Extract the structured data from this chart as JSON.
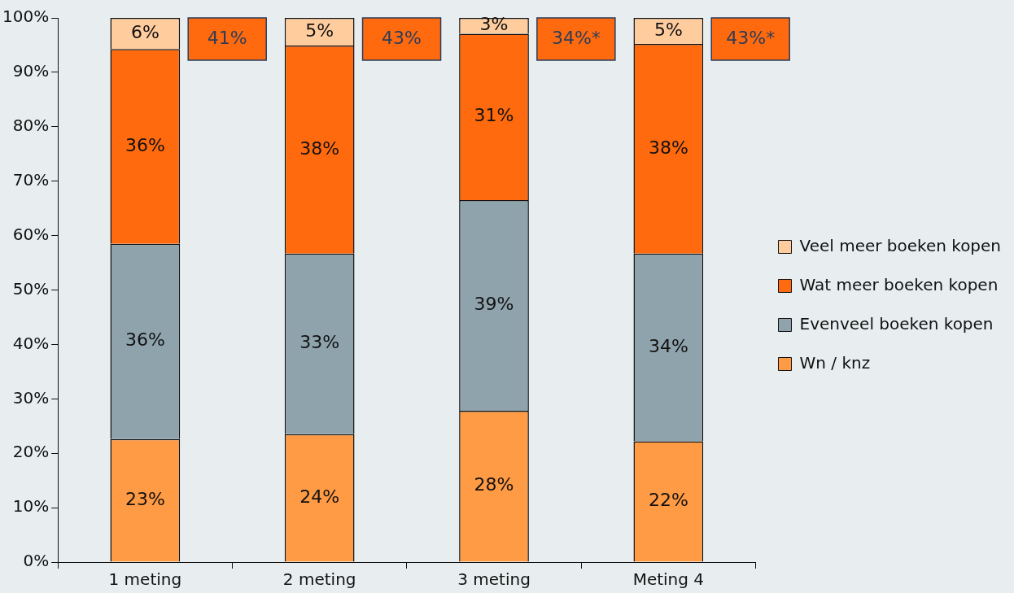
{
  "chart_data": {
    "type": "bar",
    "stacked": true,
    "categories": [
      "1 meting",
      "2 meting",
      "3 meting",
      "Meting 4"
    ],
    "series": [
      {
        "name": "Wn / knz",
        "color": "#ff9a45",
        "values": [
          22.6,
          23.5,
          27.8,
          22.2
        ],
        "value_labels": [
          "23%",
          "24%",
          "28%",
          "22%"
        ]
      },
      {
        "name": "Evenveel boeken kopen",
        "color": "#8fa3ad",
        "values": [
          35.9,
          33.2,
          38.7,
          34.5
        ],
        "value_labels": [
          "36%",
          "33%",
          "39%",
          "34%"
        ]
      },
      {
        "name": "Wat meer boeken kopen",
        "color": "#ff6a0e",
        "values": [
          35.8,
          38.2,
          30.6,
          38.5
        ],
        "value_labels": [
          "36%",
          "38%",
          "31%",
          "38%"
        ]
      },
      {
        "name": "Veel meer boeken kopen",
        "color": "#ffcc9e",
        "values": [
          5.7,
          5.1,
          2.9,
          4.8
        ],
        "value_labels": [
          "6%",
          "5%",
          "3%",
          "5%"
        ]
      }
    ],
    "ylim": [
      0,
      100
    ],
    "yticks": [
      {
        "value": 0,
        "label": "0%"
      },
      {
        "value": 10,
        "label": "10%"
      },
      {
        "value": 20,
        "label": "20%"
      },
      {
        "value": 30,
        "label": "30%"
      },
      {
        "value": 40,
        "label": "40%"
      },
      {
        "value": 50,
        "label": "50%"
      },
      {
        "value": 60,
        "label": "60%"
      },
      {
        "value": 70,
        "label": "70%"
      },
      {
        "value": 80,
        "label": "80%"
      },
      {
        "value": 90,
        "label": "90%"
      },
      {
        "value": 100,
        "label": "100%"
      }
    ],
    "annotations": [
      "41%",
      "43%",
      "34%*",
      "43%*"
    ],
    "grid": false,
    "legend": "right"
  }
}
